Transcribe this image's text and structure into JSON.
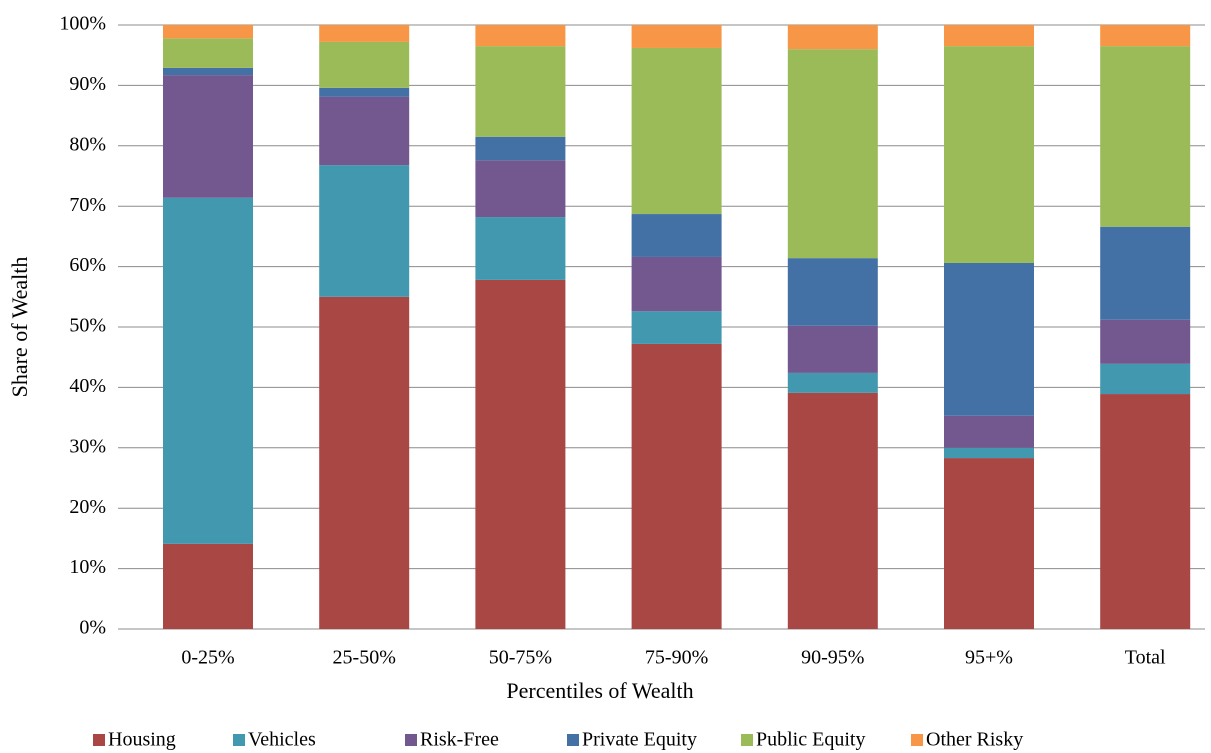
{
  "chart_data": {
    "type": "stacked_bar",
    "xlabel": "Percentiles of Wealth",
    "ylabel": "Share  of  Wealth",
    "categories": [
      "0-25%",
      "25-50%",
      "50-75%",
      "75-90%",
      "90-95%",
      "95+%",
      "Total"
    ],
    "series": [
      {
        "name": "Housing",
        "color": "#a84744",
        "values": [
          14.1,
          55.0,
          57.8,
          47.2,
          39.1,
          28.3,
          38.9
        ]
      },
      {
        "name": "Vehicles",
        "color": "#4298ae",
        "values": [
          57.3,
          21.8,
          10.4,
          5.4,
          3.3,
          1.7,
          5.0
        ]
      },
      {
        "name": "Risk-Free",
        "color": "#72588e",
        "values": [
          20.3,
          11.3,
          9.4,
          9.0,
          7.8,
          5.3,
          7.3
        ]
      },
      {
        "name": "Private Equity",
        "color": "#4371a6",
        "values": [
          1.2,
          1.5,
          3.9,
          7.1,
          11.2,
          25.3,
          15.4
        ]
      },
      {
        "name": "Public Equity",
        "color": "#9bbb59",
        "values": [
          4.9,
          7.6,
          15.0,
          27.5,
          34.6,
          35.9,
          29.9
        ]
      },
      {
        "name": "Other Risky",
        "color": "#f79646",
        "values": [
          2.2,
          2.8,
          3.5,
          3.8,
          4.0,
          3.5,
          3.5
        ]
      }
    ],
    "ylim": [
      0,
      100
    ],
    "yticks": [
      {
        "value": 0,
        "label": "0%"
      },
      {
        "value": 10,
        "label": "10%"
      },
      {
        "value": 20,
        "label": "20%"
      },
      {
        "value": 30,
        "label": "30%"
      },
      {
        "value": 40,
        "label": "40%"
      },
      {
        "value": 50,
        "label": "50%"
      },
      {
        "value": 60,
        "label": "60%"
      },
      {
        "value": 70,
        "label": "70%"
      },
      {
        "value": 80,
        "label": "80%"
      },
      {
        "value": 90,
        "label": "90%"
      },
      {
        "value": 100,
        "label": "100%"
      }
    ],
    "grid": true,
    "legend": "bottom"
  }
}
